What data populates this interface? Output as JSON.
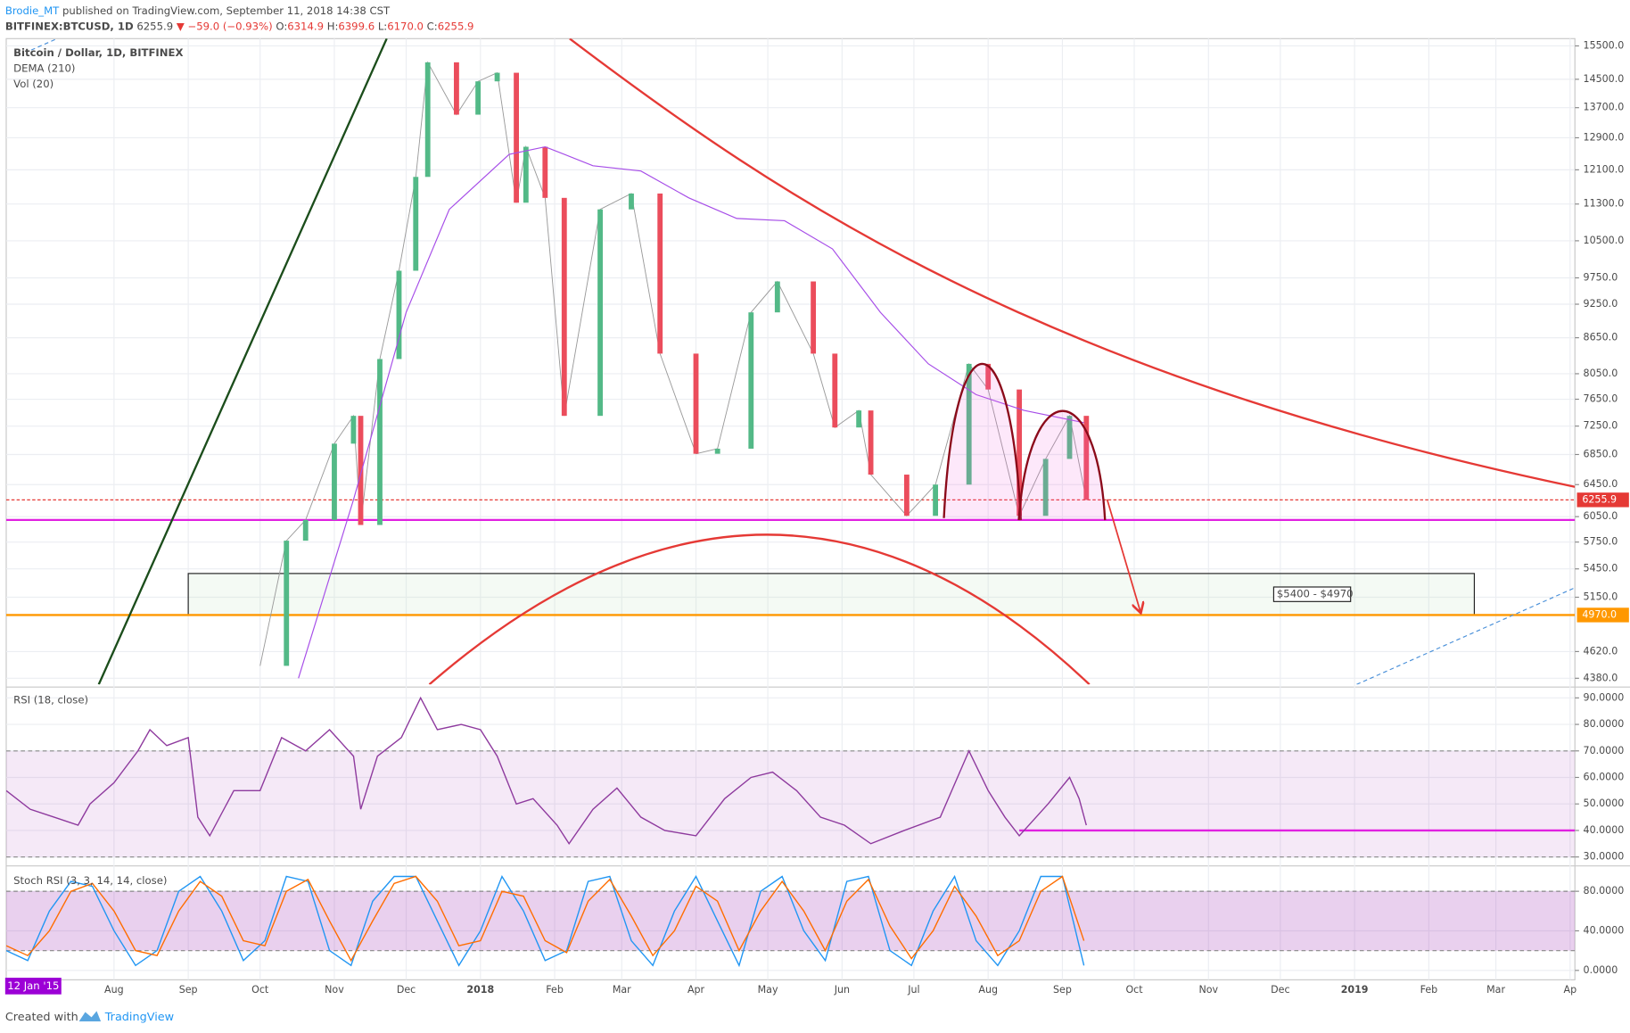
{
  "header": {
    "user": "Brodie_MT",
    "published": "published on TradingView.com, September 11, 2018 14:38 CST",
    "symbol": "BITFINEX:BTCUSD, 1D",
    "price": "6255.9",
    "change": "▼ −59.0 (−0.93%)",
    "ohlc": [
      {
        "label": "O:",
        "value": "6314.9"
      },
      {
        "label": "H:",
        "value": "6399.6"
      },
      {
        "label": "L:",
        "value": "6170.0"
      },
      {
        "label": "C:",
        "value": "6255.9"
      }
    ]
  },
  "chart_data": [
    {
      "type": "candlestick",
      "title": "Bitcoin / Dollar, 1D, BITFINEX",
      "indicators": [
        "DEMA (210)",
        "Vol (20)"
      ],
      "log_scale": true,
      "grid": true,
      "ylim": [
        4326,
        15727
      ],
      "yticks": [
        {
          "value": 15500,
          "label": "15500.0"
        },
        {
          "value": 14500,
          "label": "14500.0"
        },
        {
          "value": 13700,
          "label": "13700.0"
        },
        {
          "value": 12900,
          "label": "12900.0"
        },
        {
          "value": 12100,
          "label": "12100.0"
        },
        {
          "value": 11300,
          "label": "11300.0"
        },
        {
          "value": 10500,
          "label": "10500.0"
        },
        {
          "value": 9750,
          "label": "9750.0"
        },
        {
          "value": 9250,
          "label": "9250.0"
        },
        {
          "value": 8650,
          "label": "8650.0"
        },
        {
          "value": 8050,
          "label": "8050.0"
        },
        {
          "value": 7650,
          "label": "7650.0"
        },
        {
          "value": 7250,
          "label": "7250.0"
        },
        {
          "value": 6850,
          "label": "6850.0"
        },
        {
          "value": 6450,
          "label": "6450.0"
        },
        {
          "value": 6050,
          "label": "6050.0"
        },
        {
          "value": 5750,
          "label": "5750.0"
        },
        {
          "value": 5450,
          "label": "5450.0"
        },
        {
          "value": 5150,
          "label": "5150.0"
        },
        {
          "value": 4620,
          "label": "4620.0"
        },
        {
          "value": 4380,
          "label": "4380.0"
        }
      ],
      "xlim": [
        -45,
        610
      ],
      "xticks": [
        {
          "value": 0,
          "label": "Aug"
        },
        {
          "value": 31,
          "label": "Sep"
        },
        {
          "value": 61,
          "label": "Oct"
        },
        {
          "value": 92,
          "label": "Nov"
        },
        {
          "value": 122,
          "label": "Dec"
        },
        {
          "value": 153,
          "label": "2018"
        },
        {
          "value": 184,
          "label": "Feb"
        },
        {
          "value": 212,
          "label": "Mar"
        },
        {
          "value": 243,
          "label": "Apr"
        },
        {
          "value": 273,
          "label": "May"
        },
        {
          "value": 304,
          "label": "Jun"
        },
        {
          "value": 334,
          "label": "Jul"
        },
        {
          "value": 365,
          "label": "Aug"
        },
        {
          "value": 396,
          "label": "Sep"
        },
        {
          "value": 426,
          "label": "Oct"
        },
        {
          "value": 457,
          "label": "Nov"
        },
        {
          "value": 487,
          "label": "Dec"
        },
        {
          "value": 518,
          "label": "2019"
        },
        {
          "value": 549,
          "label": "Feb"
        },
        {
          "value": 577,
          "label": "Mar"
        },
        {
          "value": 608,
          "label": "Ap"
        }
      ],
      "price": {
        "up_color": "#53b987",
        "down_color": "#eb4d5c",
        "x": [
          61,
          72,
          80,
          92,
          100,
          103,
          111,
          119,
          126,
          131,
          143,
          152,
          160,
          168,
          172,
          180,
          188,
          203,
          216,
          228,
          243,
          252,
          266,
          277,
          292,
          301,
          311,
          316,
          331,
          343,
          357,
          365,
          378,
          389,
          399,
          406
        ],
        "values": [
          4490,
          5766,
          6010,
          7000,
          7400,
          5950,
          8290,
          9890,
          11930,
          15000,
          13510,
          14440,
          14690,
          11330,
          12670,
          11440,
          7400,
          11180,
          11540,
          8380,
          6860,
          6930,
          9100,
          9680,
          8380,
          7230,
          7480,
          6580,
          6060,
          6450,
          8210,
          7800,
          6060,
          6790,
          7400,
          6255.9
        ]
      },
      "series": [
        {
          "name": "DEMA (210)",
          "color": "#a64de8",
          "x": [
            77,
            100,
            122,
            140,
            165,
            180,
            200,
            220,
            240,
            260,
            280,
            300,
            320,
            340,
            360,
            380,
            405
          ],
          "values": [
            4380,
            6260,
            9100,
            11180,
            12480,
            12670,
            12200,
            12070,
            11440,
            10980,
            10930,
            10330,
            9100,
            8210,
            7720,
            7480,
            7300
          ]
        }
      ],
      "levels": [
        {
          "value": 6255.9,
          "label": "6255.9",
          "color": "#e53935"
        },
        {
          "value": 6010,
          "color": "#e020e0"
        },
        {
          "value": 4970,
          "label": "4970.0",
          "color": "#ff9800"
        }
      ],
      "zone": {
        "label": "$5400 - $4970",
        "top": 5400,
        "bottom": 4970,
        "x": [
          31,
          568
        ]
      }
    },
    {
      "type": "line",
      "title": "RSI (18, close)",
      "grid": true,
      "ylim": [
        27.6,
        93.1
      ],
      "yticks": [
        {
          "value": 90,
          "label": "90.0000"
        },
        {
          "value": 80,
          "label": "80.0000"
        },
        {
          "value": 70,
          "label": "70.0000"
        },
        {
          "value": 60,
          "label": "60.0000"
        },
        {
          "value": 50,
          "label": "50.0000"
        },
        {
          "value": 40,
          "label": "40.0000"
        },
        {
          "value": 30,
          "label": "30.0000"
        }
      ],
      "band": [
        30,
        70
      ],
      "level": {
        "value": 40,
        "from": 378,
        "color": "#e020e0"
      },
      "series": [
        {
          "color": "#8e3a9e",
          "x": [
            -45,
            -35,
            -25,
            -15,
            -10,
            0,
            10,
            15,
            22,
            31,
            35,
            40,
            50,
            61,
            70,
            80,
            90,
            100,
            103,
            110,
            120,
            128,
            135,
            145,
            153,
            160,
            168,
            175,
            185,
            190,
            200,
            210,
            220,
            230,
            243,
            255,
            266,
            275,
            285,
            295,
            305,
            316,
            330,
            345,
            357,
            365,
            372,
            378,
            390,
            399,
            403,
            406
          ],
          "values": [
            55,
            48,
            45,
            42,
            50,
            58,
            70,
            78,
            72,
            75,
            45,
            38,
            55,
            55,
            75,
            70,
            78,
            68,
            48,
            68,
            75,
            90,
            78,
            80,
            78,
            68,
            50,
            52,
            42,
            35,
            48,
            56,
            45,
            40,
            38,
            52,
            60,
            62,
            55,
            45,
            42,
            35,
            40,
            45,
            70,
            55,
            45,
            38,
            50,
            60,
            52,
            42
          ]
        }
      ]
    },
    {
      "type": "line",
      "title": "Stoch RSI (3, 3, 14, 14, close)",
      "grid": true,
      "ylim": [
        -9.5,
        103
      ],
      "yticks": [
        {
          "value": 80,
          "label": "80.0000"
        },
        {
          "value": 40,
          "label": "40.0000"
        },
        {
          "value": 0,
          "label": "0.0000"
        }
      ],
      "band": [
        20,
        80
      ],
      "series": [
        {
          "color": "#2196f3",
          "x": [
            -45,
            -36,
            -27,
            -18,
            -9,
            0,
            9,
            18,
            27,
            36,
            45,
            54,
            63,
            72,
            81,
            90,
            99,
            108,
            117,
            126,
            135,
            144,
            153,
            162,
            171,
            180,
            189,
            198,
            207,
            216,
            225,
            234,
            243,
            252,
            261,
            270,
            279,
            288,
            297,
            306,
            315,
            324,
            333,
            342,
            351,
            360,
            369,
            378,
            387,
            396,
            405
          ],
          "values": [
            20,
            10,
            60,
            90,
            85,
            40,
            5,
            20,
            80,
            95,
            60,
            10,
            30,
            95,
            90,
            20,
            5,
            70,
            95,
            95,
            50,
            5,
            40,
            95,
            60,
            10,
            20,
            90,
            95,
            30,
            5,
            60,
            95,
            50,
            5,
            80,
            95,
            40,
            10,
            90,
            95,
            20,
            5,
            60,
            95,
            30,
            5,
            40,
            95,
            95,
            5
          ]
        },
        {
          "color": "#ff6d00",
          "x": [
            -45,
            -36,
            -27,
            -18,
            -9,
            0,
            9,
            18,
            27,
            36,
            45,
            54,
            63,
            72,
            81,
            90,
            99,
            108,
            117,
            126,
            135,
            144,
            153,
            162,
            171,
            180,
            189,
            198,
            207,
            216,
            225,
            234,
            243,
            252,
            261,
            270,
            279,
            288,
            297,
            306,
            315,
            324,
            333,
            342,
            351,
            360,
            369,
            378,
            387,
            396,
            405
          ],
          "values": [
            25,
            15,
            40,
            80,
            88,
            60,
            20,
            15,
            60,
            90,
            75,
            30,
            25,
            80,
            92,
            50,
            10,
            50,
            88,
            95,
            70,
            25,
            30,
            80,
            75,
            30,
            18,
            70,
            92,
            55,
            15,
            40,
            85,
            70,
            20,
            60,
            90,
            60,
            20,
            70,
            92,
            45,
            12,
            40,
            85,
            55,
            15,
            30,
            80,
            95,
            30
          ]
        }
      ]
    }
  ],
  "cursor_label": "12 Jan '15",
  "footer": {
    "created": "Created with",
    "brand": "TradingView"
  }
}
